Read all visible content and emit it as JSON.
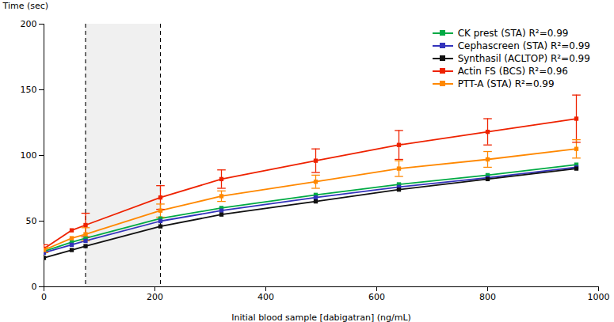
{
  "chart_data": {
    "type": "line",
    "xlabel": "Initial blood sample [dabigatran] (ng/mL)",
    "ylabel": "Time (sec)",
    "xlim": [
      0,
      1000
    ],
    "ylim": [
      0,
      200
    ],
    "xticks": [
      0,
      200,
      400,
      600,
      800,
      1000
    ],
    "yticks": [
      0,
      50,
      100,
      150,
      200
    ],
    "grid": false,
    "legend": "upper right",
    "marker": "square",
    "vlines": [
      75,
      210
    ],
    "x": [
      0,
      50,
      75,
      210,
      320,
      490,
      640,
      800,
      960
    ],
    "series": [
      {
        "name": "CK prest (STA) R²=0.99",
        "color": "#00aa44",
        "values": [
          27,
          34,
          37,
          52,
          60,
          70,
          78,
          85,
          93
        ]
      },
      {
        "name": "Cephascreen (STA) R²=0.99",
        "color": "#3333bb",
        "values": [
          26,
          32,
          35,
          50,
          58,
          68,
          76,
          83,
          91
        ]
      },
      {
        "name": "Synthasil (ACLTOP) R²=0.99",
        "color": "#111111",
        "values": [
          22,
          28,
          31,
          46,
          55,
          65,
          74,
          82,
          90
        ]
      },
      {
        "name": "Actin FS (BCS) R²=0.96",
        "color": "#ee2200",
        "values": [
          29,
          43,
          47,
          68,
          82,
          96,
          108,
          118,
          128
        ],
        "errors": [
          3,
          0,
          9,
          9,
          7,
          9,
          11,
          10,
          18
        ]
      },
      {
        "name": "PTT-A (STA) R²=0.99",
        "color": "#ff8800",
        "values": [
          28,
          37,
          40,
          58,
          69,
          80,
          90,
          97,
          105
        ],
        "errors": [
          2,
          0,
          5,
          5,
          4,
          5,
          6,
          6,
          7
        ]
      }
    ]
  }
}
